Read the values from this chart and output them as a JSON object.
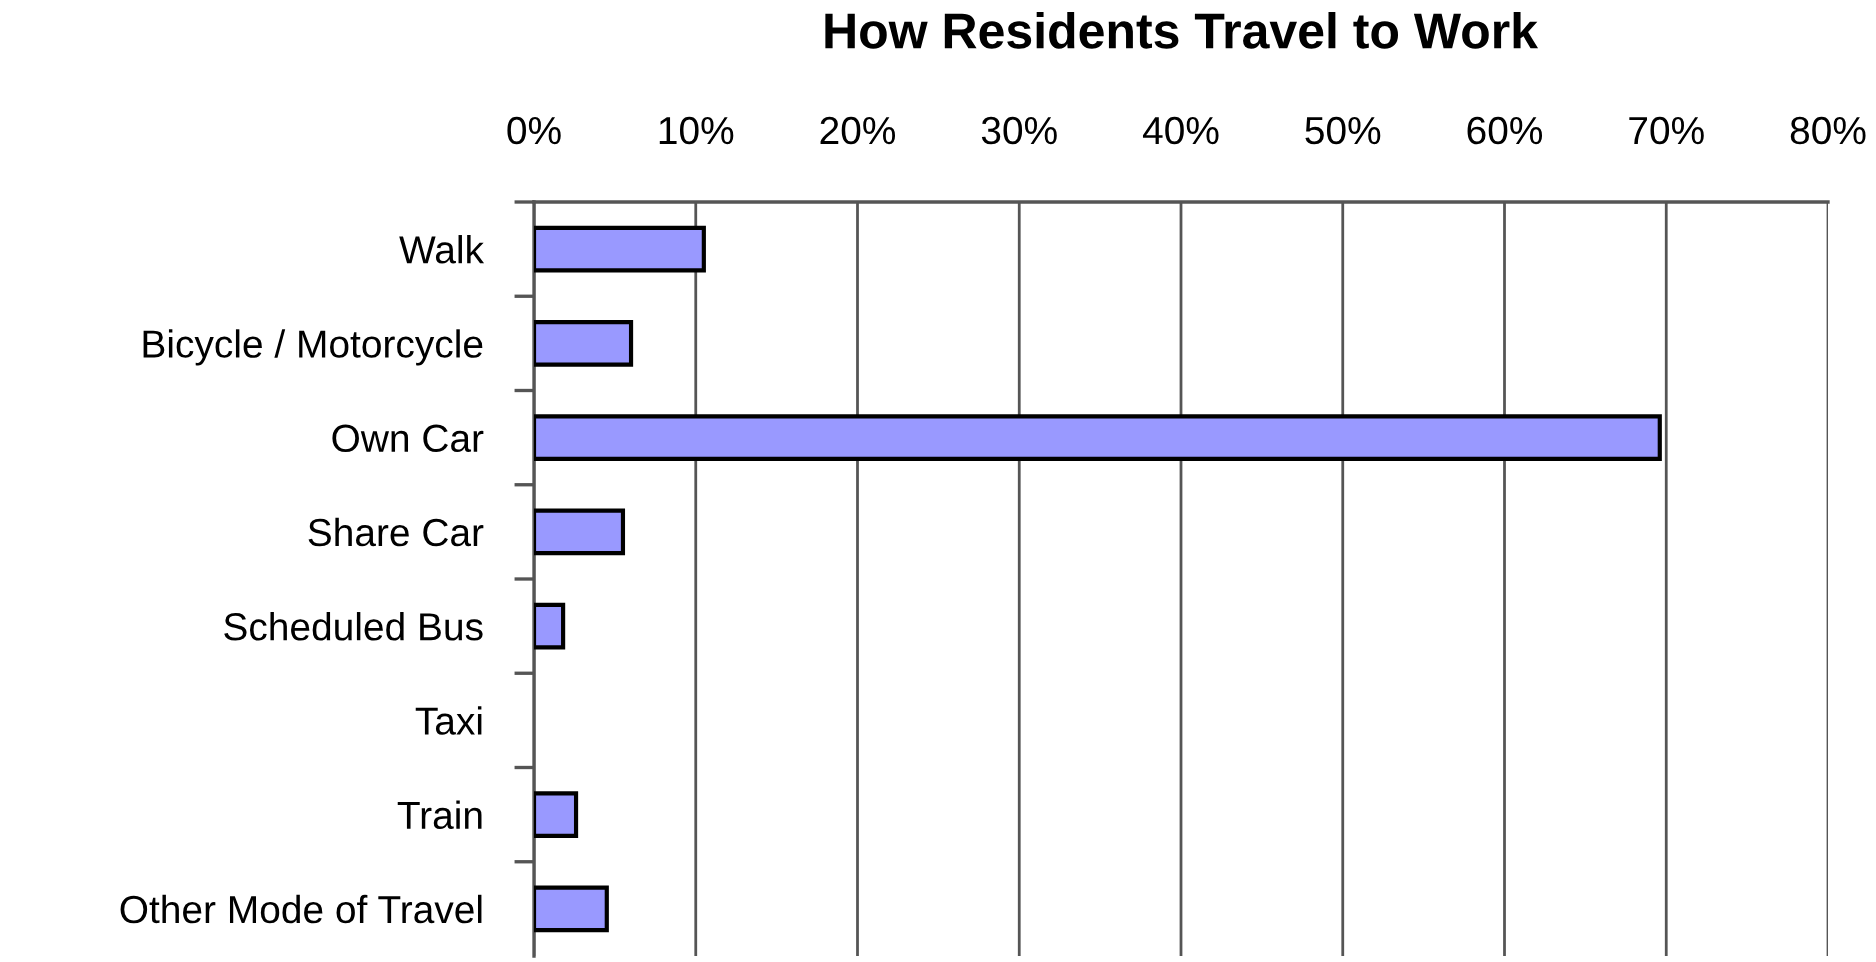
{
  "chart_data": {
    "type": "bar",
    "orientation": "horizontal",
    "title": "How Residents Travel to Work",
    "categories": [
      "Walk",
      "Bicycle / Motorcycle",
      "Own Car",
      "Share Car",
      "Scheduled Bus",
      "Taxi",
      "Train",
      "Other Mode of Travel"
    ],
    "values": [
      10.5,
      6.0,
      69.6,
      5.5,
      1.8,
      0,
      2.6,
      4.5
    ],
    "color": "#9999ff",
    "xlim": [
      0,
      80
    ],
    "xticks": [
      {
        "value": 0,
        "label": "0%"
      },
      {
        "value": 10,
        "label": "10%"
      },
      {
        "value": 20,
        "label": "20%"
      },
      {
        "value": 30,
        "label": "30%"
      },
      {
        "value": 40,
        "label": "40%"
      },
      {
        "value": 50,
        "label": "50%"
      },
      {
        "value": 60,
        "label": "60%"
      },
      {
        "value": 70,
        "label": "70%"
      },
      {
        "value": 80,
        "label": "80%"
      }
    ],
    "grid": "x",
    "legend": false
  }
}
